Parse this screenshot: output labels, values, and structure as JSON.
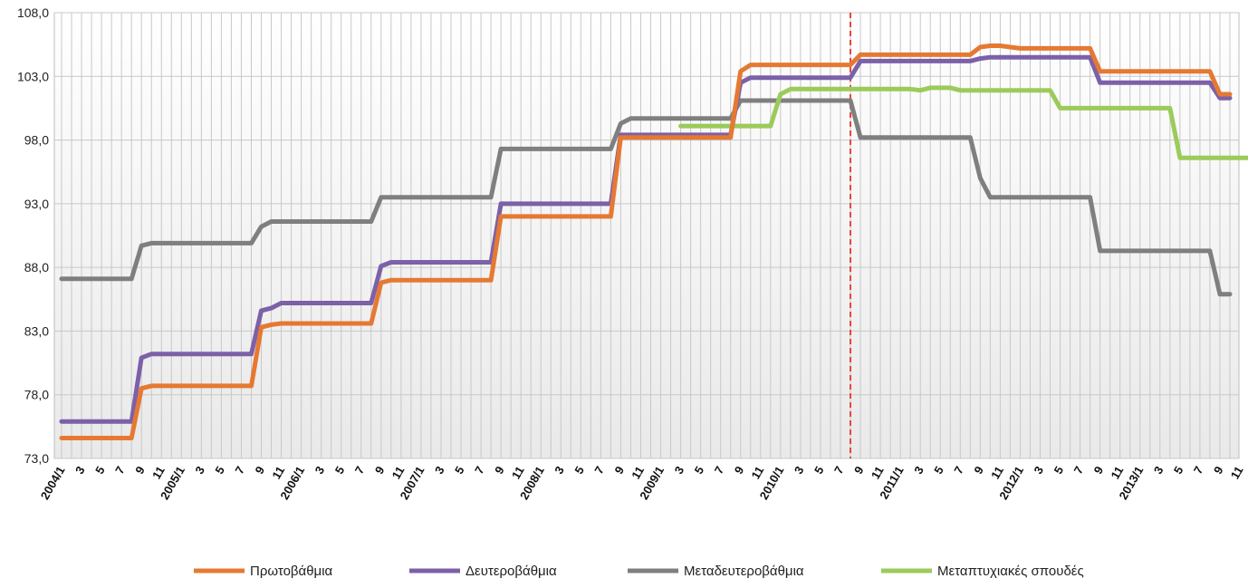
{
  "chart_data": {
    "type": "line",
    "title": "",
    "xlabel": "",
    "ylabel": "",
    "ylim": [
      73.0,
      108.0
    ],
    "yticks": [
      "73,0",
      "78,0",
      "83,0",
      "88,0",
      "93,0",
      "98,0",
      "103,0",
      "108,0"
    ],
    "grid": true,
    "legend_position": "bottom",
    "marker_line": {
      "index": 79,
      "color": "#E8463B",
      "style": "dashed"
    },
    "x_labels": [
      "2004/1",
      "3",
      "5",
      "7",
      "9",
      "11",
      "2005/1",
      "3",
      "5",
      "7",
      "9",
      "11",
      "2006/1",
      "3",
      "5",
      "7",
      "9",
      "11",
      "2007/1",
      "3",
      "5",
      "7",
      "9",
      "11",
      "2008/1",
      "3",
      "5",
      "7",
      "9",
      "11",
      "2009/1",
      "3",
      "5",
      "7",
      "9",
      "11",
      "2010/1",
      "3",
      "5",
      "7",
      "9",
      "11",
      "2011/1",
      "3",
      "5",
      "7",
      "9",
      "11",
      "2012/1",
      "3",
      "5",
      "7",
      "9",
      "11",
      "2013/1",
      "3",
      "5",
      "7",
      "9",
      "11"
    ],
    "series": [
      {
        "name": "Πρωτοβάθμια",
        "color": "#E67932",
        "values": [
          74.6,
          74.6,
          74.6,
          74.6,
          74.6,
          74.6,
          74.6,
          74.6,
          78.5,
          78.7,
          78.7,
          78.7,
          78.7,
          78.7,
          78.7,
          78.7,
          78.7,
          78.7,
          78.7,
          78.7,
          83.3,
          83.5,
          83.6,
          83.6,
          83.6,
          83.6,
          83.6,
          83.6,
          83.6,
          83.6,
          83.6,
          83.6,
          86.8,
          87.0,
          87.0,
          87.0,
          87.0,
          87.0,
          87.0,
          87.0,
          87.0,
          87.0,
          87.0,
          87.0,
          92.0,
          92.0,
          92.0,
          92.0,
          92.0,
          92.0,
          92.0,
          92.0,
          92.0,
          92.0,
          92.0,
          92.0,
          98.2,
          98.2,
          98.2,
          98.2,
          98.2,
          98.2,
          98.2,
          98.2,
          98.2,
          98.2,
          98.2,
          98.2,
          103.4,
          103.9,
          103.9,
          103.9,
          103.9,
          103.9,
          103.9,
          103.9,
          103.9,
          103.9,
          103.9,
          103.9,
          104.7,
          104.7,
          104.7,
          104.7,
          104.7,
          104.7,
          104.7,
          104.7,
          104.7,
          104.7,
          104.7,
          104.7,
          105.3,
          105.4,
          105.4,
          105.3,
          105.2,
          105.2,
          105.2,
          105.2,
          105.2,
          105.2,
          105.2,
          105.2,
          103.4,
          103.4,
          103.4,
          103.4,
          103.4,
          103.4,
          103.4,
          103.4,
          103.4,
          103.4,
          103.4,
          103.4,
          101.6,
          101.6
        ]
      },
      {
        "name": "Δευτεροβάθμια",
        "color": "#7C60A8",
        "values": [
          75.9,
          75.9,
          75.9,
          75.9,
          75.9,
          75.9,
          75.9,
          75.9,
          80.9,
          81.2,
          81.2,
          81.2,
          81.2,
          81.2,
          81.2,
          81.2,
          81.2,
          81.2,
          81.2,
          81.2,
          84.6,
          84.8,
          85.2,
          85.2,
          85.2,
          85.2,
          85.2,
          85.2,
          85.2,
          85.2,
          85.2,
          85.2,
          88.1,
          88.4,
          88.4,
          88.4,
          88.4,
          88.4,
          88.4,
          88.4,
          88.4,
          88.4,
          88.4,
          88.4,
          93.0,
          93.0,
          93.0,
          93.0,
          93.0,
          93.0,
          93.0,
          93.0,
          93.0,
          93.0,
          93.0,
          93.0,
          98.4,
          98.4,
          98.4,
          98.4,
          98.4,
          98.4,
          98.4,
          98.4,
          98.4,
          98.4,
          98.4,
          98.4,
          102.5,
          102.9,
          102.9,
          102.9,
          102.9,
          102.9,
          102.9,
          102.9,
          102.9,
          102.9,
          102.9,
          102.9,
          104.2,
          104.2,
          104.2,
          104.2,
          104.2,
          104.2,
          104.2,
          104.2,
          104.2,
          104.2,
          104.2,
          104.2,
          104.4,
          104.5,
          104.5,
          104.5,
          104.5,
          104.5,
          104.5,
          104.5,
          104.5,
          104.5,
          104.5,
          104.5,
          102.5,
          102.5,
          102.5,
          102.5,
          102.5,
          102.5,
          102.5,
          102.5,
          102.5,
          102.5,
          102.5,
          102.5,
          101.3,
          101.3
        ]
      },
      {
        "name": "Μεταδευτεροβάθμια",
        "color": "#7F7F7F",
        "values": [
          87.1,
          87.1,
          87.1,
          87.1,
          87.1,
          87.1,
          87.1,
          87.1,
          89.7,
          89.9,
          89.9,
          89.9,
          89.9,
          89.9,
          89.9,
          89.9,
          89.9,
          89.9,
          89.9,
          89.9,
          91.2,
          91.6,
          91.6,
          91.6,
          91.6,
          91.6,
          91.6,
          91.6,
          91.6,
          91.6,
          91.6,
          91.6,
          93.5,
          93.5,
          93.5,
          93.5,
          93.5,
          93.5,
          93.5,
          93.5,
          93.5,
          93.5,
          93.5,
          93.5,
          97.3,
          97.3,
          97.3,
          97.3,
          97.3,
          97.3,
          97.3,
          97.3,
          97.3,
          97.3,
          97.3,
          97.3,
          99.3,
          99.7,
          99.7,
          99.7,
          99.7,
          99.7,
          99.7,
          99.7,
          99.7,
          99.7,
          99.7,
          99.7,
          101.1,
          101.1,
          101.1,
          101.1,
          101.1,
          101.1,
          101.1,
          101.1,
          101.1,
          101.1,
          101.1,
          101.1,
          98.2,
          98.2,
          98.2,
          98.2,
          98.2,
          98.2,
          98.2,
          98.2,
          98.2,
          98.2,
          98.2,
          98.2,
          95.0,
          93.5,
          93.5,
          93.5,
          93.5,
          93.5,
          93.5,
          93.5,
          93.5,
          93.5,
          93.5,
          93.5,
          89.3,
          89.3,
          89.3,
          89.3,
          89.3,
          89.3,
          89.3,
          89.3,
          89.3,
          89.3,
          89.3,
          89.3,
          85.9,
          85.9
        ]
      },
      {
        "name": "Μεταπτυχιακές σπουδές",
        "color": "#9BCB5A",
        "values": [
          null,
          null,
          null,
          null,
          null,
          null,
          null,
          null,
          null,
          null,
          null,
          null,
          null,
          null,
          null,
          null,
          null,
          null,
          null,
          null,
          null,
          null,
          null,
          null,
          null,
          null,
          null,
          null,
          null,
          null,
          null,
          null,
          null,
          null,
          null,
          null,
          null,
          null,
          null,
          null,
          null,
          null,
          null,
          null,
          null,
          null,
          null,
          null,
          null,
          null,
          null,
          null,
          null,
          null,
          null,
          null,
          null,
          null,
          null,
          null,
          null,
          null,
          99.1,
          99.1,
          99.1,
          99.1,
          99.1,
          99.1,
          99.1,
          99.1,
          99.1,
          99.1,
          101.6,
          102.0,
          102.0,
          102.0,
          102.0,
          102.0,
          102.0,
          102.0,
          102.0,
          102.0,
          102.0,
          102.0,
          102.0,
          102.0,
          101.9,
          102.1,
          102.1,
          102.1,
          101.9,
          101.9,
          101.9,
          101.9,
          101.9,
          101.9,
          101.9,
          101.9,
          101.9,
          101.9,
          100.5,
          100.5,
          100.5,
          100.5,
          100.5,
          100.5,
          100.5,
          100.5,
          100.5,
          100.5,
          100.5,
          100.5,
          96.6,
          96.6,
          96.6,
          96.6,
          96.6,
          96.6,
          96.6,
          96.6,
          96.6,
          96.6,
          96.6,
          96.6,
          96.6,
          96.6,
          96.6,
          96.6,
          96.6,
          96.6,
          96.6,
          96.6,
          96.6
        ]
      }
    ]
  }
}
